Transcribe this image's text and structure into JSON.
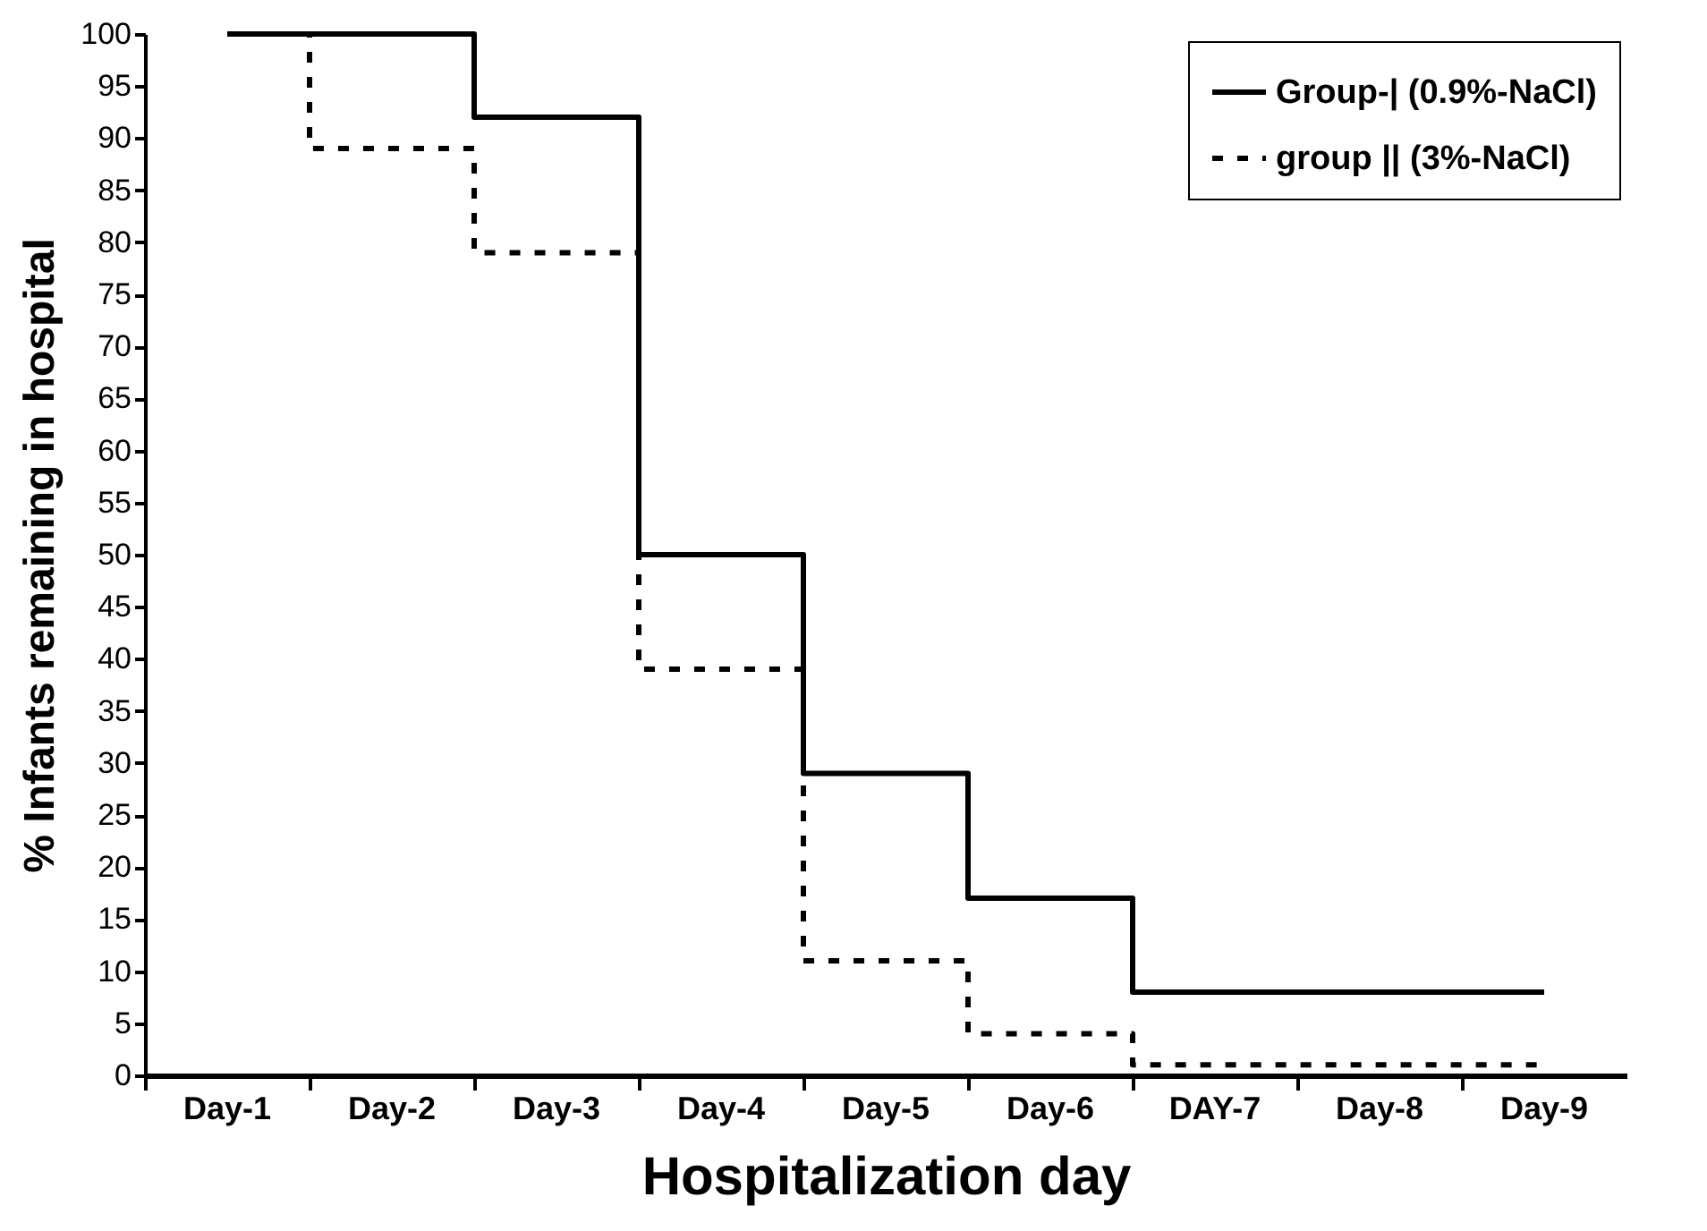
{
  "chart_data": {
    "type": "step",
    "xlabel": "Hospitalization day",
    "ylabel": "% Infants remaining in hospital",
    "categories": [
      "Day-1",
      "Day-2",
      "Day-3",
      "Day-4",
      "Day-5",
      "Day-6",
      "DAY-7",
      "Day-8",
      "Day-9"
    ],
    "series": [
      {
        "name": "Group-| (0.9%-NaCl)",
        "color": "#000000",
        "line_style": "solid",
        "values": [
          100,
          100,
          92,
          50,
          29,
          17,
          8,
          8,
          8
        ]
      },
      {
        "name": "group || (3%-NaCl)",
        "color": "#000000",
        "line_style": "dashed",
        "values": [
          100,
          89,
          79,
          39,
          11,
          4,
          1,
          1,
          1
        ]
      }
    ],
    "ylim": [
      0,
      100
    ],
    "yticks": [
      0,
      5,
      10,
      15,
      20,
      25,
      30,
      35,
      40,
      45,
      50,
      55,
      60,
      65,
      70,
      75,
      80,
      85,
      90,
      95,
      100
    ],
    "grid": false,
    "legend": "top right",
    "marker": "none"
  }
}
